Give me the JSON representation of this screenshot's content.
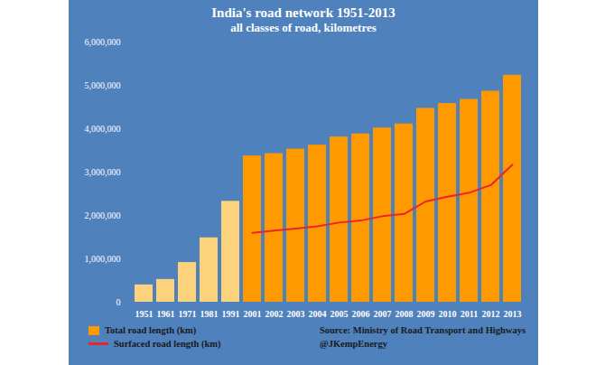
{
  "chart_data": {
    "type": "bar",
    "title": "India's road network 1951-2013",
    "subtitle": "all classes of road, kilometres",
    "source": "Source: Ministry of Road Transport and Highways",
    "credit": "@JKempEnergy",
    "categories": [
      "1951",
      "1961",
      "1971",
      "1981",
      "1991",
      "2001",
      "2002",
      "2003",
      "2004",
      "2005",
      "2006",
      "2007",
      "2008",
      "2009",
      "2010",
      "2011",
      "2012",
      "2013"
    ],
    "series": [
      {
        "name": "Total road length (km)",
        "type": "bar",
        "color": "#ff9900",
        "colors": [
          "#fdd27c",
          "#fdd27c",
          "#fdd27c",
          "#fdd27c",
          "#fdd27c",
          "#ff9900",
          "#ff9900",
          "#ff9900",
          "#ff9900",
          "#ff9900",
          "#ff9900",
          "#ff9900",
          "#ff9900",
          "#ff9900",
          "#ff9900",
          "#ff9900",
          "#ff9900",
          "#ff9900"
        ],
        "values": [
          400000,
          524000,
          915000,
          1485000,
          2327000,
          3373000,
          3426000,
          3529000,
          3622000,
          3809000,
          3880000,
          4016000,
          4110000,
          4471000,
          4582000,
          4676000,
          4865000,
          5232000
        ]
      },
      {
        "name": "Surfaced road length (km)",
        "type": "line",
        "color": "#e8262a",
        "values": [
          null,
          null,
          null,
          null,
          null,
          1601000,
          1650000,
          1698000,
          1750000,
          1836000,
          1883000,
          1982000,
          2036000,
          2323000,
          2431000,
          2524000,
          2700000,
          3170000
        ]
      }
    ],
    "ylim": [
      0,
      6000000
    ],
    "yticks": [
      0,
      {
        "value": 1000000,
        "label": "1,000,000"
      },
      {
        "value": 2000000,
        "label": "2,000,000"
      },
      {
        "value": 3000000,
        "label": "3,000,000"
      },
      {
        "value": 4000000,
        "label": "4,000,000"
      },
      {
        "value": 5000000,
        "label": "5,000,000"
      },
      {
        "value": 6000000,
        "label": "6,000,000"
      }
    ],
    "grid": false,
    "legend": "bottom"
  }
}
